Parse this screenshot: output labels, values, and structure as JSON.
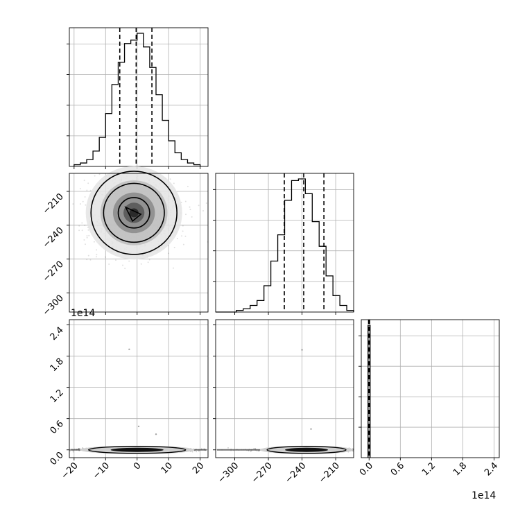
{
  "chart_data": {
    "type": "corner",
    "title": "",
    "parameters": [
      {
        "name": "",
        "range": [
          -21.5,
          22.5
        ],
        "ticks": [
          -20,
          -10,
          0,
          10,
          20
        ],
        "tick_labels": [
          "−20",
          "−10",
          "0",
          "10",
          "20"
        ],
        "quantiles": [
          -5.5,
          -0.3,
          4.7
        ]
      },
      {
        "name": "",
        "range": [
          -317,
          -194
        ],
        "ticks": [
          -300,
          -270,
          -240,
          -210
        ],
        "tick_labels": [
          "−300",
          "−270",
          "−240",
          "−210"
        ],
        "quantiles": [
          -255.8,
          -238.5,
          -220.5
        ]
      },
      {
        "name": "",
        "range": [
          -0.15,
          2.5
        ],
        "scale_label": "1e14",
        "ticks": [
          0.0,
          0.6,
          1.2,
          1.8,
          2.4
        ],
        "tick_labels": [
          "0.0",
          "0.6",
          "1.2",
          "1.8",
          "2.4"
        ],
        "quantiles": [
          -0.01,
          0.0,
          0.01
        ]
      }
    ],
    "histograms": [
      {
        "parameter": 0,
        "bin_edges": [
          -20,
          -18,
          -16,
          -14,
          -12,
          -10,
          -8,
          -6,
          -4,
          -2,
          0,
          2,
          4,
          6,
          8,
          10,
          12,
          14,
          16,
          18,
          20
        ],
        "counts": [
          1,
          2,
          4,
          9,
          17,
          31,
          48,
          61,
          72,
          74,
          78,
          70,
          58,
          42,
          27,
          15,
          8,
          4,
          2,
          1
        ]
      },
      {
        "parameter": 1,
        "bin_edges": [
          -317,
          -310.85,
          -304.7,
          -298.55,
          -292.4,
          -286.25,
          -280.1,
          -273.95,
          -267.8,
          -261.65,
          -255.5,
          -249.35,
          -243.2,
          -237.05,
          -230.9,
          -224.75,
          -218.6,
          -212.45,
          -206.3,
          -200.15,
          -194
        ],
        "counts": [
          0,
          0,
          0,
          1,
          2,
          4,
          7,
          16,
          31,
          47,
          68,
          80,
          81,
          72,
          55,
          40,
          22,
          10,
          4,
          1
        ]
      },
      {
        "parameter": 2,
        "bin_edges": [
          -0.02,
          0.02
        ],
        "counts": [
          1
        ]
      }
    ],
    "scatter_2d": [
      {
        "x": 0,
        "y": 1,
        "center": [
          -1.0,
          -229.0
        ],
        "spread": [
          7.0,
          18.0
        ],
        "contours": [
          "outer",
          "middle",
          "inner"
        ],
        "outliers": []
      },
      {
        "x": 0,
        "y": 2,
        "center": [
          0.0,
          0.0
        ],
        "spread": [
          7.0,
          0.0
        ],
        "contours": [
          "flat"
        ],
        "outliers": [
          [
            -2.5,
            1.93
          ],
          [
            0.5,
            0.45
          ],
          [
            6.0,
            0.3
          ]
        ]
      },
      {
        "x": 1,
        "y": 2,
        "center": [
          -236.0,
          0.0
        ],
        "spread": [
          16.0,
          0.0
        ],
        "contours": [
          "flat"
        ],
        "outliers": [
          [
            -240.0,
            1.92
          ],
          [
            -232.0,
            0.4
          ]
        ]
      }
    ],
    "grid": true,
    "legend": "none"
  }
}
